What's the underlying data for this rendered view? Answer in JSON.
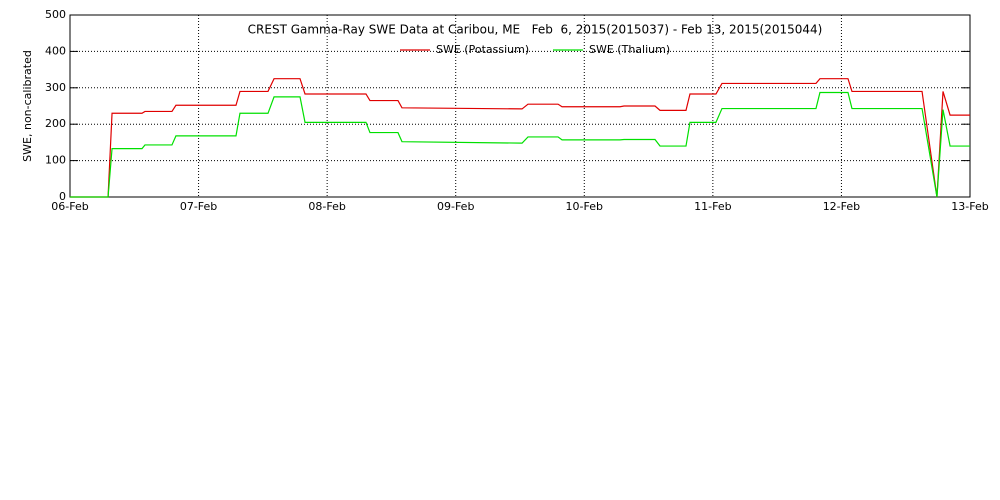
{
  "chart_data": {
    "type": "line",
    "title": "CREST Gamma-Ray SWE Data at Caribou, ME   Feb  6, 2015(2015037) - Feb 13, 2015(2015044)",
    "y_label": "SWE, non-calibrated",
    "x": [
      0,
      0.296,
      0.327,
      0.56,
      0.583,
      0.793,
      0.824,
      1.291,
      1.322,
      1.54,
      1.587,
      1.789,
      1.828,
      2.302,
      2.333,
      2.551,
      2.582,
      3.516,
      3.562,
      3.796,
      3.827,
      4.278,
      4.309,
      4.55,
      4.589,
      4.791,
      4.822,
      5.024,
      5.071,
      5.802,
      5.833,
      6.051,
      6.082,
      6.627,
      6.743,
      6.79,
      6.845,
      7
    ],
    "series": [
      {
        "name": "SWE (Potassium)",
        "color": "#e00000",
        "values": [
          0,
          0,
          230,
          230,
          235,
          235,
          252,
          252,
          290,
          290,
          325,
          325,
          283,
          283,
          265,
          265,
          245,
          242,
          255,
          255,
          248,
          248,
          250,
          250,
          238,
          238,
          283,
          283,
          312,
          312,
          325,
          325,
          290,
          290,
          0,
          290,
          225,
          225
        ]
      },
      {
        "name": "SWE (Thalium)",
        "color": "#00e000",
        "values": [
          0,
          0,
          133,
          133,
          143,
          143,
          168,
          168,
          230,
          230,
          275,
          275,
          205,
          205,
          177,
          177,
          152,
          148,
          165,
          165,
          157,
          157,
          158,
          158,
          140,
          140,
          205,
          205,
          243,
          243,
          287,
          287,
          243,
          243,
          0,
          240,
          140,
          140
        ]
      }
    ],
    "xlim": [
      0,
      7
    ],
    "xticks": [
      {
        "value": 0,
        "label": "06-Feb"
      },
      {
        "value": 1,
        "label": "07-Feb"
      },
      {
        "value": 2,
        "label": "08-Feb"
      },
      {
        "value": 3,
        "label": "09-Feb"
      },
      {
        "value": 4,
        "label": "10-Feb"
      },
      {
        "value": 5,
        "label": "11-Feb"
      },
      {
        "value": 6,
        "label": "12-Feb"
      },
      {
        "value": 7,
        "label": "13-Feb"
      }
    ],
    "ylim": [
      0,
      500
    ],
    "yticks": [
      0,
      100,
      200,
      300,
      400,
      500
    ],
    "grid": true,
    "legend": "top"
  }
}
